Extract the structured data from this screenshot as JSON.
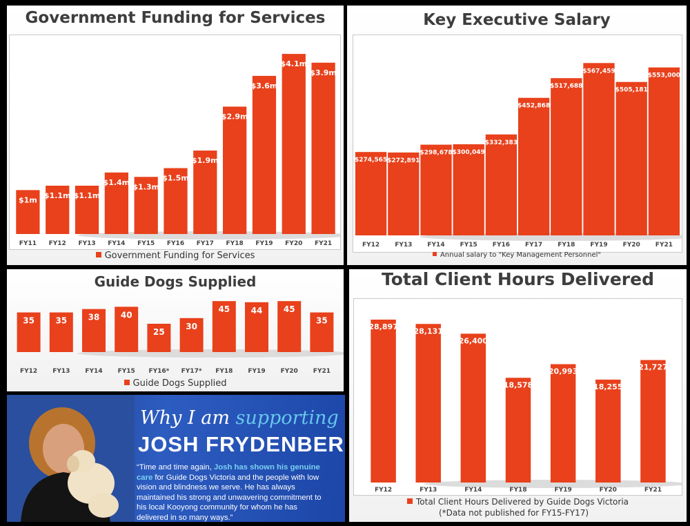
{
  "colors": {
    "bar": "#e8411c",
    "label": "#ffffff",
    "axis": "#444444"
  },
  "chart_data": [
    {
      "type": "bar",
      "title": "Government Funding for Services",
      "categories": [
        "FY11",
        "FY12",
        "FY13",
        "FY14",
        "FY15",
        "FY16",
        "FY17",
        "FY18",
        "FY19",
        "FY20",
        "FY21"
      ],
      "series": [
        {
          "name": "Government Funding for Services",
          "values": [
            1.0,
            1.1,
            1.1,
            1.4,
            1.3,
            1.5,
            1.9,
            2.9,
            3.6,
            4.1,
            3.9
          ]
        }
      ],
      "data_labels": [
        "$1m",
        "$1.1m",
        "$1.1m",
        "$1.4m",
        "$1.3m",
        "$1.5m",
        "$1.9m",
        "$2.9m",
        "$3.6m",
        "$4.1m",
        "$3.9m"
      ],
      "ylim": [
        0,
        4.4
      ],
      "grid": false,
      "legend": "bottom"
    },
    {
      "type": "bar",
      "title": "Key Executive Salary",
      "categories": [
        "FY12",
        "FY13",
        "FY14",
        "FY15",
        "FY16",
        "FY17",
        "FY18",
        "FY19",
        "FY20",
        "FY21"
      ],
      "series": [
        {
          "name": "Annual salary to \"Key Management Personnel\"",
          "values": [
            274565,
            272891,
            298678,
            300049,
            332383,
            452868,
            517688,
            567459,
            505181,
            553000
          ]
        }
      ],
      "data_labels": [
        "$274,565",
        "$272,891",
        "$298,678",
        "$300,049",
        "$332,383",
        "$452,868",
        "$517,688",
        "$567,459",
        "$505,181",
        "$553,000"
      ],
      "ylim": [
        0,
        600000
      ],
      "grid": false,
      "legend": "bottom"
    },
    {
      "type": "bar",
      "title": "Guide Dogs Supplied",
      "categories": [
        "FY12",
        "FY13",
        "FY14",
        "FY15",
        "FY16*",
        "FY17*",
        "FY18",
        "FY19",
        "FY20",
        "FY21"
      ],
      "series": [
        {
          "name": "Guide Dogs Supplied",
          "values": [
            35,
            35,
            38,
            40,
            25,
            30,
            45,
            44,
            45,
            35
          ]
        }
      ],
      "data_labels": [
        "35",
        "35",
        "38",
        "40",
        "25",
        "30",
        "45",
        "44",
        "45",
        "35"
      ],
      "ylim": [
        0,
        50
      ],
      "grid": false,
      "legend": "bottom"
    },
    {
      "type": "bar",
      "title": "Total Client Hours Delivered",
      "categories": [
        "FY12",
        "FY13",
        "FY14",
        "FY18",
        "FY19",
        "FY20",
        "FY21"
      ],
      "series": [
        {
          "name": "Total Client Hours Delivered by Guide Dogs Victoria",
          "values": [
            28897,
            28131,
            26400,
            18578,
            20993,
            18255,
            21727
          ]
        }
      ],
      "data_labels": [
        "28,897",
        "28,131",
        "26,400",
        "18,578",
        "20,993",
        "18,255",
        "21,727"
      ],
      "legend_note": "(*Data not published for FY15-FY17)",
      "ylim": [
        0,
        30000
      ],
      "grid": false,
      "legend": "bottom"
    }
  ],
  "promo": {
    "heading_plain": "Why I am ",
    "heading_accent": "supporting",
    "name": "JOSH FRYDENBERG",
    "quote_1": "“Time and time again, ",
    "quote_hl": "Josh has shown his genuine care",
    "quote_2": " for Guide Dogs Victoria and the people with low vision and blindness we serve. He has always maintained his strong and unwavering commitment to his local Kooyong community for whom he has delivered in so many ways.”"
  }
}
